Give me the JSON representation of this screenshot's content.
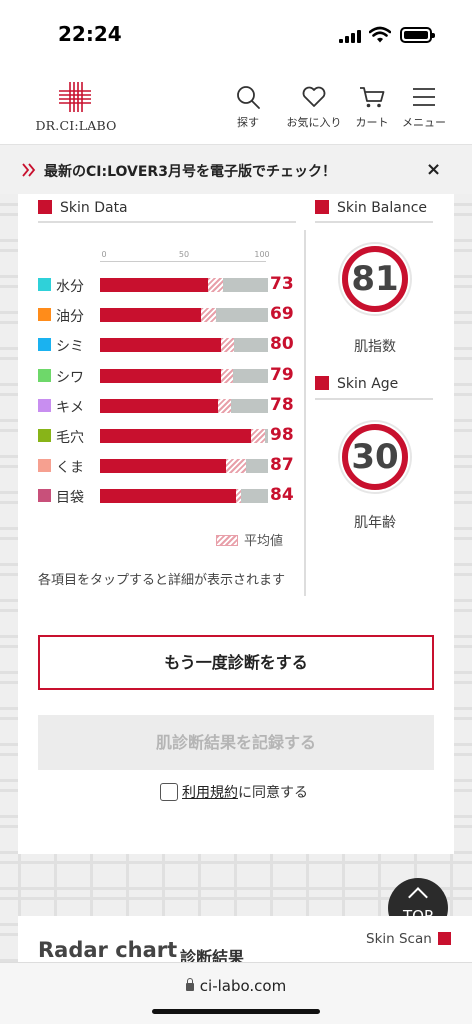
{
  "status": {
    "time": "22:24"
  },
  "header": {
    "logo": "DR.CI:LABO",
    "nav": [
      {
        "label": "探す",
        "icon": "search-icon"
      },
      {
        "label": "お気に入り",
        "icon": "heart-icon"
      },
      {
        "label": "カート",
        "icon": "cart-icon"
      },
      {
        "label": "メニュー",
        "icon": "menu-icon"
      }
    ]
  },
  "banner": {
    "text": "最新のCI:LOVER3月号を電子版でチェック！",
    "close": "×"
  },
  "skin_data": {
    "title": "Skin Data",
    "scale": [
      "0",
      "50",
      "100"
    ],
    "items": [
      {
        "label": "水分",
        "value": "73",
        "color": "#2fd1d9",
        "avg": 64
      },
      {
        "label": "油分",
        "value": "69",
        "color": "#ff8c1a",
        "avg": 60
      },
      {
        "label": "シミ",
        "value": "80",
        "color": "#1ab2f0",
        "avg": 72
      },
      {
        "label": "シワ",
        "value": "79",
        "color": "#6ed86a",
        "avg": 72
      },
      {
        "label": "キメ",
        "value": "78",
        "color": "#c88ef0",
        "avg": 70
      },
      {
        "label": "毛穴",
        "value": "98",
        "color": "#88b418",
        "avg": 90
      },
      {
        "label": "くま",
        "value": "87",
        "color": "#f6a090",
        "avg": 75
      },
      {
        "label": "目袋",
        "value": "84",
        "color": "#c8507a",
        "avg": 81
      }
    ],
    "legend_avg": "平均値",
    "note": "各項目をタップすると詳細が表示されます"
  },
  "skin_balance": {
    "title": "Skin Balance",
    "value": "81",
    "caption": "肌指数"
  },
  "skin_age": {
    "title": "Skin Age",
    "value": "30",
    "caption": "肌年齢"
  },
  "actions": {
    "retry": "もう一度診断をする",
    "record": "肌診断結果を記録する",
    "agree_link": "利用規約",
    "agree_rest": "に同意する"
  },
  "top_button": "TOP",
  "radar": {
    "title": "Radar chart",
    "subtitle": "診断結果",
    "skin_scan": "Skin Scan"
  },
  "browser": {
    "url": "ci-labo.com"
  }
}
